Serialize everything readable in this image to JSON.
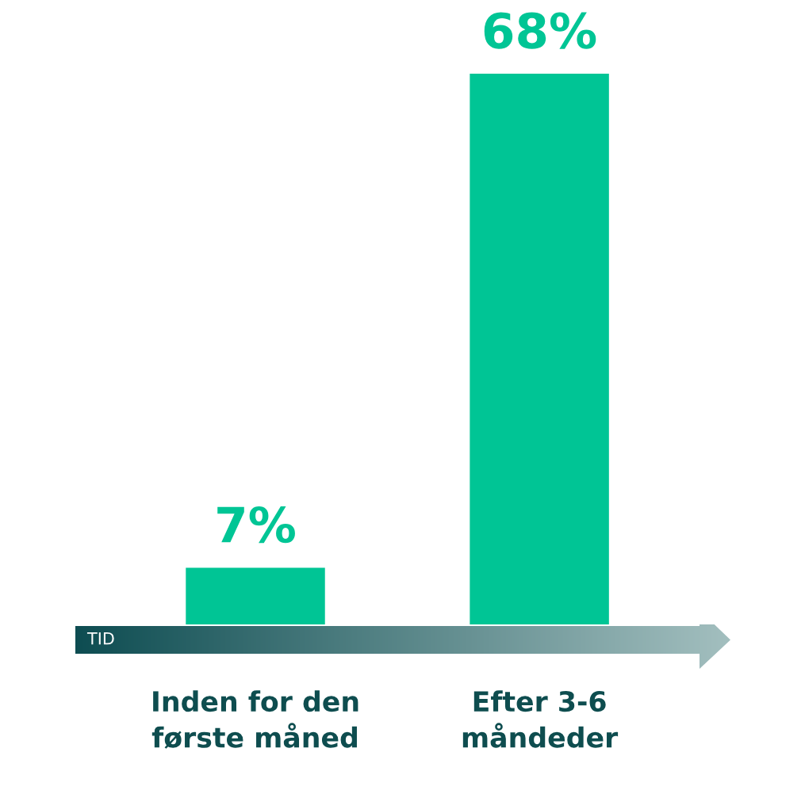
{
  "chart_data": {
    "type": "bar",
    "categories": [
      "Inden for den\nførste måned",
      "Efter 3-6\nmåndeder"
    ],
    "values": [
      7,
      68
    ],
    "value_labels": [
      "7%",
      "68%"
    ],
    "color": "#00c595",
    "xlabel": "TID",
    "grid": false,
    "legend": false
  }
}
